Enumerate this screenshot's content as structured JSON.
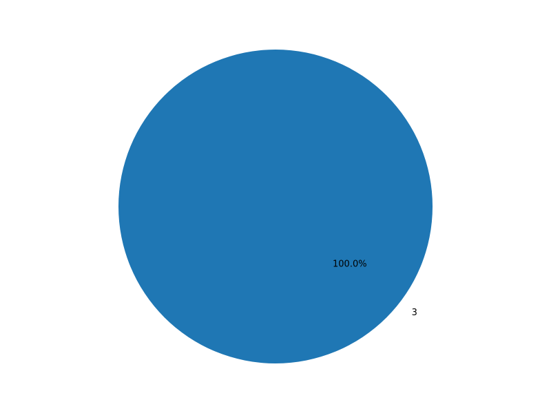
{
  "chart_data": {
    "type": "pie",
    "title": "",
    "slices": [
      {
        "label": "3",
        "value": 100.0,
        "percent_label": "100.0%",
        "color": "#1f77b4"
      }
    ],
    "legend": "none"
  }
}
